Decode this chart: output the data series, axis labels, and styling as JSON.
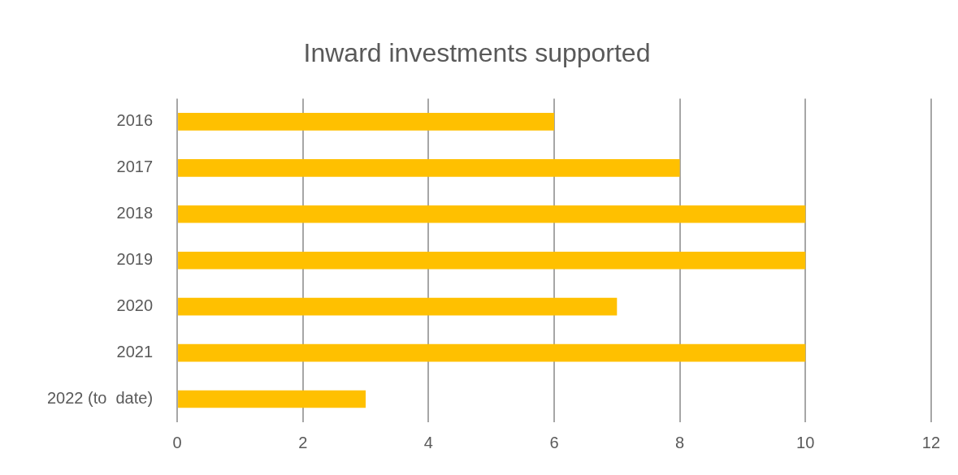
{
  "chart_data": {
    "type": "bar",
    "orientation": "horizontal",
    "title": "Inward investments supported",
    "categories": [
      "2016",
      "2017",
      "2018",
      "2019",
      "2020",
      "2021",
      "2022 (to  date)"
    ],
    "values": [
      6,
      8,
      10,
      10,
      7,
      10,
      3
    ],
    "color": "#ffc000",
    "xlim": [
      0,
      12
    ],
    "xticks": [
      0,
      2,
      4,
      6,
      8,
      10,
      12
    ],
    "grid": "x",
    "legend": false
  }
}
